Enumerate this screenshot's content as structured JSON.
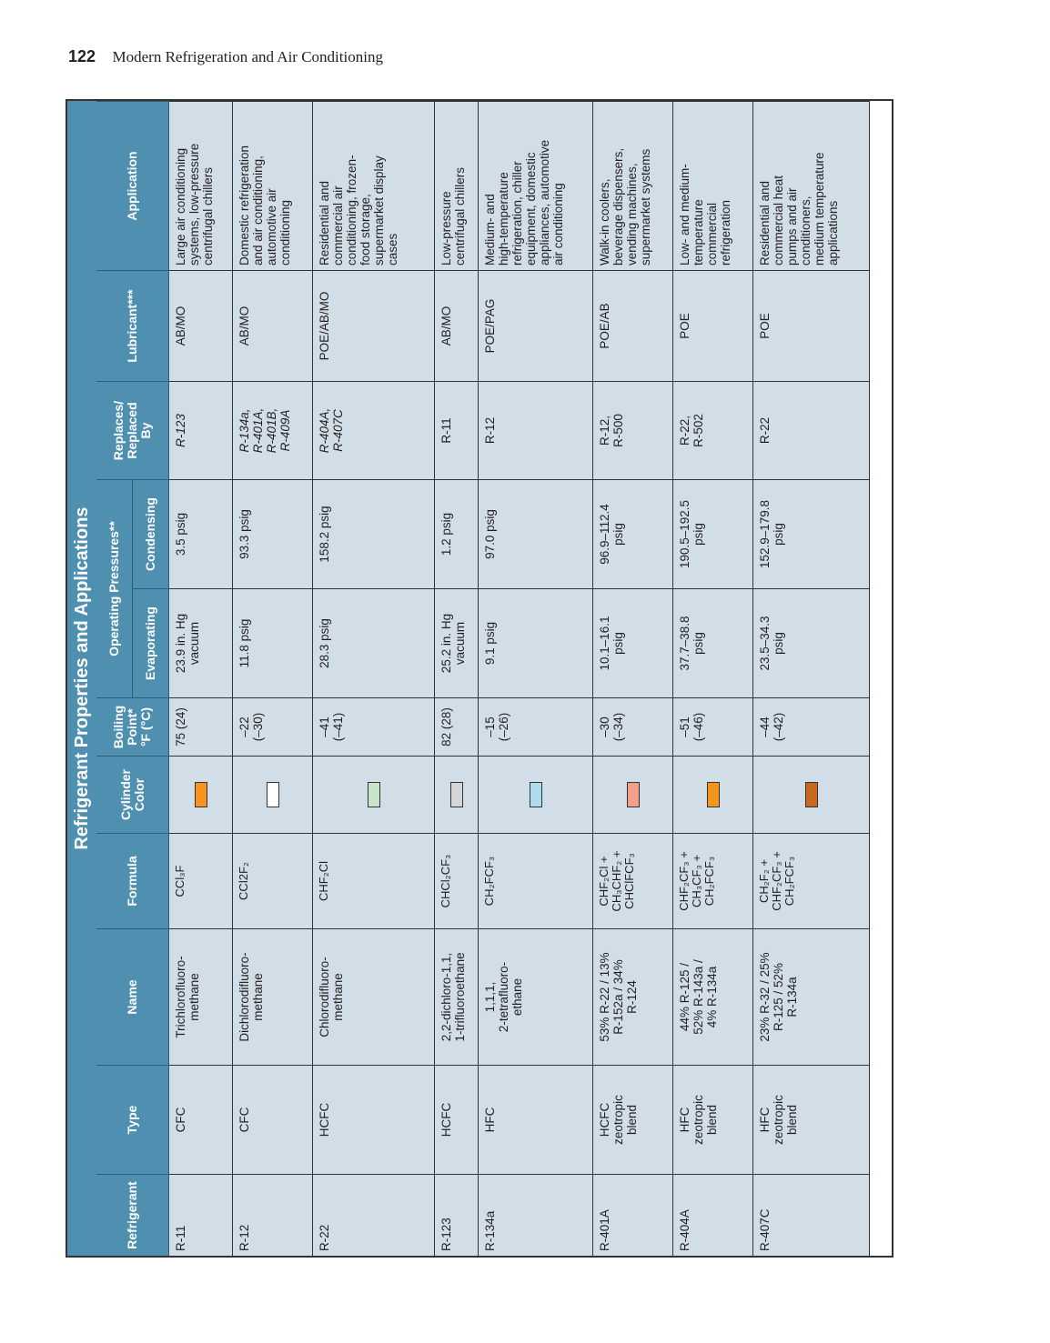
{
  "header": {
    "page_number": "122",
    "book_title": "Modern Refrigeration and Air Conditioning"
  },
  "table": {
    "title": "Refrigerant Properties and Applications",
    "columns": {
      "refrigerant": "Refrigerant",
      "type": "Type",
      "name": "Name",
      "formula": "Formula",
      "cylinder_color": "Cylinder\nColor",
      "boiling_point": "Boiling\nPoint*\n°F (°C)",
      "operating_pressures": "Operating Pressures**",
      "evaporating": "Evaporating",
      "condensing": "Condensing",
      "replaces": "Replaces/\nReplaced\nBy",
      "lubricant": "Lubricant***",
      "application": "Application"
    },
    "rows": [
      {
        "refrigerant": "R-11",
        "type": "CFC",
        "name": "Trichlorofluoro-\nmethane",
        "formula": "CCl₃F",
        "cylinder_color": "#f7941d",
        "boiling_point": "75 (24)",
        "evaporating": "23.9 in. Hg\nvacuum",
        "condensing": "3.5 psig",
        "replaces": "R-123",
        "lubricant": "AB/MO",
        "application": "Large air conditioning\nsystems, low-pressure\ncentrifugal chillers"
      },
      {
        "refrigerant": "R-12",
        "type": "CFC",
        "name": "Dichlorodifluoro-\nmethane",
        "formula": "CCl2F₂",
        "cylinder_color": "#ffffff",
        "boiling_point": "–22\n(–30)",
        "evaporating": "11.8 psig",
        "condensing": "93.3 psig",
        "replaces": "R-134a,\nR-401A,\nR-401B,\nR-409A",
        "lubricant": "AB/MO",
        "application": "Domestic refrigeration\nand air conditioning,\nautomotive air\nconditioning"
      },
      {
        "refrigerant": "R-22",
        "type": "HCFC",
        "name": "Chlorodifluoro-\nmethane",
        "formula": "CHF₂Cl",
        "cylinder_color": "#c8e3c8",
        "boiling_point": "–41\n(–41)",
        "evaporating": "28.3 psig",
        "condensing": "158.2 psig",
        "replaces": "R-404A,\nR-407C",
        "lubricant": "POE/AB/MO",
        "application": "Residential and\ncommercial air\nconditioning, frozen-\nfood storage,\nsupermarket display\ncases"
      },
      {
        "refrigerant": "R-123",
        "type": "HCFC",
        "name": "2,2-dichloro-1,1,\n1-trifluoroethane",
        "formula": "CHCl₂CF₃",
        "cylinder_color": "#d4d6d8",
        "boiling_point": "82 (28)",
        "evaporating": "25.2 in. Hg\nvacuum",
        "condensing": "1.2 psig",
        "replaces": "R-11",
        "lubricant": "AB/MO",
        "application": "Low-pressure\ncentrifugal chillers"
      },
      {
        "refrigerant": "R-134a",
        "type": "HFC",
        "name": "1,1,1,\n2-tetrafluoro-\nethane",
        "formula": "CH₂FCF₃",
        "cylinder_color": "#aedcec",
        "boiling_point": "–15\n(–26)",
        "evaporating": "9.1 psig",
        "condensing": "97.0 psig",
        "replaces": "R-12",
        "lubricant": "POE/PAG",
        "application": "Medium- and\nhigh-temperature\nrefrigeration, chiller\nequipment, domestic\nappliances, automotive\nair conditioning"
      },
      {
        "refrigerant": "R-401A",
        "type": "HCFC\nzeotropic\nblend",
        "name": "53% R-22 / 13%\nR-152a / 34%\nR-124",
        "formula": "CHF₂Cl +\nCH₃CHF₂ +\nCHClFCF₃",
        "cylinder_color": "#f4a08a",
        "boiling_point": "–30\n(–34)",
        "evaporating": "10.1–16.1\npsig",
        "condensing": "96.9–112.4\npsig",
        "replaces": "R-12,\nR-500",
        "lubricant": "POE/AB",
        "application": "Walk-in coolers,\nbeverage dispensers,\nvending machines,\nsupermarket systems"
      },
      {
        "refrigerant": "R-404A",
        "type": "HFC\nzeotropic\nblend",
        "name": "44% R-125 /\n52% R-143a /\n4% R-134a",
        "formula": "CHF₂CF₃ +\nCH₃CF₃ +\nCH₂FCF₃",
        "cylinder_color": "#f7941d",
        "boiling_point": "–51\n(–46)",
        "evaporating": "37.7–38.8\npsig",
        "condensing": "190.5–192.5\npsig",
        "replaces": "R-22,\nR-502",
        "lubricant": "POE",
        "application": "Low- and medium-\ntemperature\ncommercial\nrefrigeration"
      },
      {
        "refrigerant": "R-407C",
        "type": "HFC\nzeotropic\nblend",
        "name": "23% R-32 / 25%\nR-125 / 52%\nR-134a",
        "formula": "CH₂F₂ +\nCHF₂CF₃ +\nCH₂FCF₃",
        "cylinder_color": "#c8691f",
        "boiling_point": "–44\n(–42)",
        "evaporating": "23.5–34.3\npsig",
        "condensing": "152.9–179.8\npsig",
        "replaces": "R-22",
        "lubricant": "POE",
        "application": "Residential and\ncommercial heat\npumps and air\nconditioners,\nmedium temperature\napplications"
      }
    ]
  }
}
